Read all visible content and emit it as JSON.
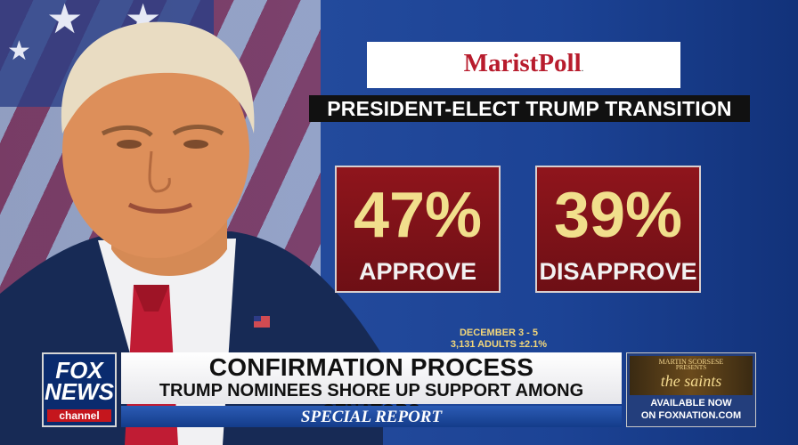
{
  "poll_logo": {
    "name": "MaristPoll",
    "mark": "."
  },
  "headline": "PRESIDENT-ELECT TRUMP TRANSITION",
  "stats": [
    {
      "value": "47%",
      "label": "APPROVE"
    },
    {
      "value": "39%",
      "label": "DISAPPROVE"
    }
  ],
  "poll_info": {
    "dates": "DECEMBER 3 - 5",
    "sample": "3,131 ADULTS ±2.1%"
  },
  "network": {
    "line1": "FOX",
    "line2": "NEWS",
    "channel": "channel"
  },
  "lower_third": {
    "title": "CONFIRMATION PROCESS",
    "subtitle": "TRUMP NOMINEES SHORE UP SUPPORT AMONG SENATORS",
    "show": "SPECIAL REPORT"
  },
  "promo": {
    "art_line1": "MARTIN SCORSESE",
    "art_line2": "PRESENTS",
    "art_title": "the saints",
    "available": "AVAILABLE NOW",
    "on": "ON FOXNATION.COM"
  },
  "colors": {
    "stat_box": "#8f151c",
    "stat_value": "#f1df8c",
    "logo_red": "#b81c2d",
    "background_blue": "#1b3f8c"
  }
}
